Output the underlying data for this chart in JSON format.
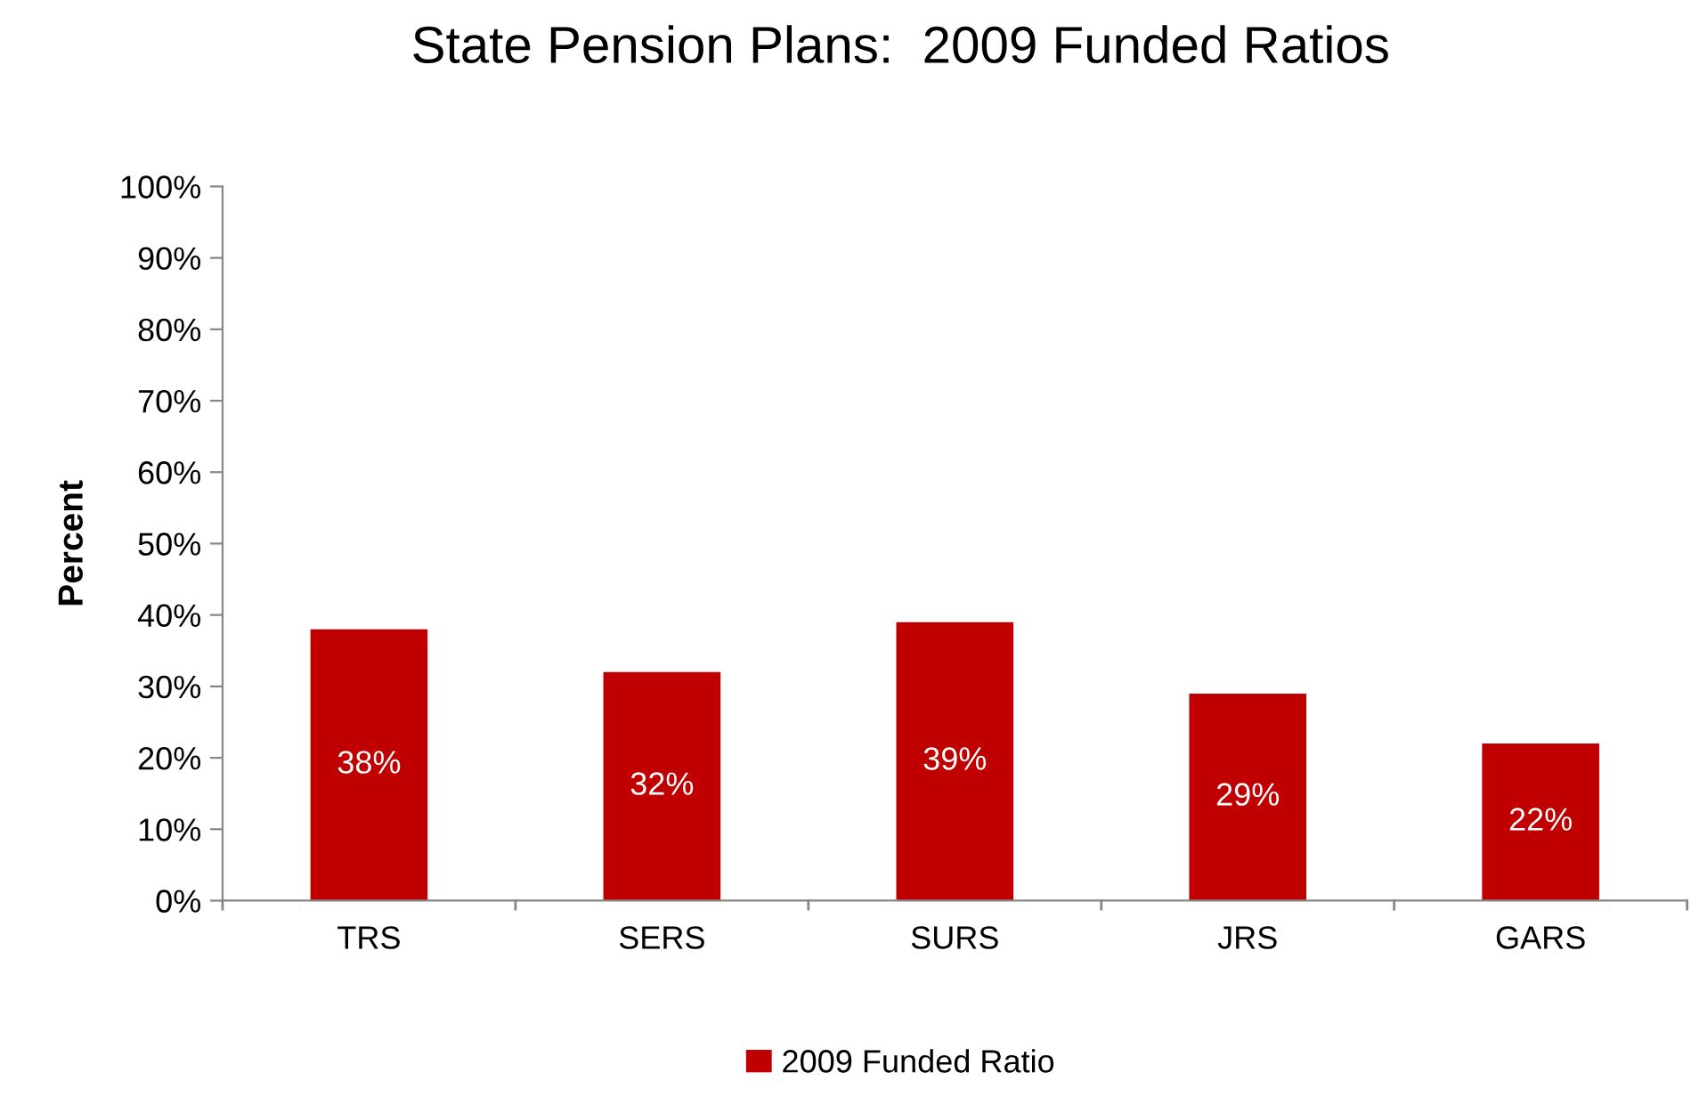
{
  "chart_data": {
    "type": "bar",
    "title": "State Pension Plans:  2009 Funded Ratios",
    "ylabel": "Percent",
    "categories": [
      "TRS",
      "SERS",
      "SURS",
      "JRS",
      "GARS"
    ],
    "series": [
      {
        "name": "2009 Funded Ratio",
        "color": "#c00000",
        "values": [
          38,
          32,
          39,
          29,
          22
        ],
        "value_labels": [
          "38%",
          "32%",
          "39%",
          "29%",
          "22%"
        ]
      }
    ],
    "ylim": [
      0,
      100
    ],
    "yticks": [
      {
        "value": 0,
        "label": "0%"
      },
      {
        "value": 10,
        "label": "10%"
      },
      {
        "value": 20,
        "label": "20%"
      },
      {
        "value": 30,
        "label": "30%"
      },
      {
        "value": 40,
        "label": "40%"
      },
      {
        "value": 50,
        "label": "50%"
      },
      {
        "value": 60,
        "label": "60%"
      },
      {
        "value": 70,
        "label": "70%"
      },
      {
        "value": 80,
        "label": "80%"
      },
      {
        "value": 90,
        "label": "90%"
      },
      {
        "value": 100,
        "label": "100%"
      }
    ],
    "grid": false,
    "legend": "bottom"
  }
}
